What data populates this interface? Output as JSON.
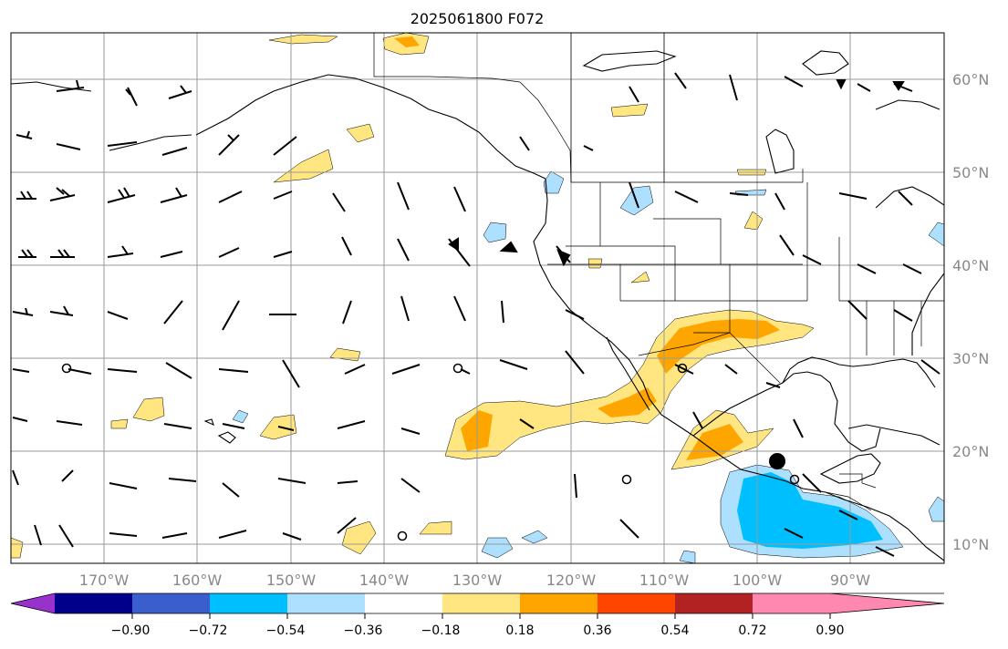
{
  "title": "2025061800 F072",
  "lat_labels": [
    "60°N",
    "50°N",
    "40°N",
    "30°N",
    "20°N",
    "10°N"
  ],
  "lon_labels": [
    "170°W",
    "160°W",
    "150°W",
    "140°W",
    "130°W",
    "120°W",
    "110°W",
    "100°W",
    "90°W"
  ],
  "colorbar": {
    "colors": [
      "#9932CC",
      "#00008B",
      "#3A5FCD",
      "#00BFFF",
      "#ADDFFF",
      "#FFFFFF",
      "#FFE680",
      "#FFA500",
      "#FF4500",
      "#B22222",
      "#FF88B0"
    ],
    "ticks": [
      "−0.90",
      "−0.72",
      "−0.54",
      "−0.36",
      "−0.18",
      "0.18",
      "0.36",
      "0.54",
      "0.72",
      "0.90"
    ]
  },
  "field_colors": {
    "pos_weak": "#FFE680",
    "pos_med": "#FFA500",
    "neg_weak": "#ADDFFF",
    "neg_med": "#00BFFF"
  }
}
